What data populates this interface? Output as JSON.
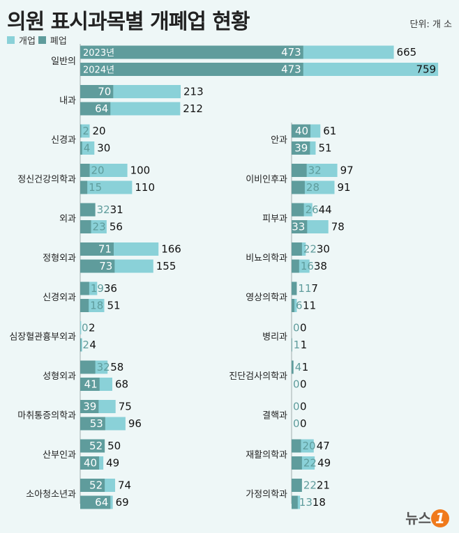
{
  "title": "의원 표시과목별 개폐업 현황",
  "unit": "단위: 개 소",
  "legend": {
    "open": "개업",
    "close": "폐업"
  },
  "colors": {
    "open": "#8ad1d8",
    "close": "#5f9c9c",
    "background": "#eef7f7"
  },
  "logo": "뉴스1",
  "chart_data": {
    "type": "bar",
    "orientation": "horizontal",
    "series_names": [
      "개업",
      "폐업"
    ],
    "years": [
      "2023년",
      "2024년"
    ],
    "left": [
      {
        "category": "일반의",
        "open": [
          665,
          759
        ],
        "close": [
          473,
          473
        ]
      },
      {
        "category": "내과",
        "open": [
          213,
          212
        ],
        "close": [
          70,
          64
        ]
      },
      {
        "category": "신경과",
        "open": [
          20,
          30
        ],
        "close": [
          2,
          4
        ]
      },
      {
        "category": "정신건강의학과",
        "open": [
          100,
          110
        ],
        "close": [
          20,
          15
        ]
      },
      {
        "category": "외과",
        "open": [
          31,
          56
        ],
        "close": [
          32,
          23
        ]
      },
      {
        "category": "정형외과",
        "open": [
          166,
          155
        ],
        "close": [
          71,
          73
        ]
      },
      {
        "category": "신경외과",
        "open": [
          36,
          51
        ],
        "close": [
          19,
          18
        ]
      },
      {
        "category": "심장혈관흉부외과",
        "open": [
          2,
          4
        ],
        "close": [
          0,
          2
        ]
      },
      {
        "category": "성형외과",
        "open": [
          58,
          68
        ],
        "close": [
          32,
          41
        ]
      },
      {
        "category": "마취통증의학과",
        "open": [
          75,
          96
        ],
        "close": [
          39,
          53
        ]
      },
      {
        "category": "산부인과",
        "open": [
          50,
          49
        ],
        "close": [
          52,
          40
        ]
      },
      {
        "category": "소아청소년과",
        "open": [
          74,
          69
        ],
        "close": [
          52,
          64
        ]
      }
    ],
    "right": [
      {
        "category": "안과",
        "open": [
          61,
          51
        ],
        "close": [
          40,
          39
        ]
      },
      {
        "category": "이비인후과",
        "open": [
          97,
          91
        ],
        "close": [
          32,
          28
        ]
      },
      {
        "category": "피부과",
        "open": [
          44,
          78
        ],
        "close": [
          26,
          33
        ]
      },
      {
        "category": "비뇨의학과",
        "open": [
          30,
          38
        ],
        "close": [
          22,
          16
        ]
      },
      {
        "category": "영상의학과",
        "open": [
          7,
          11
        ],
        "close": [
          11,
          6
        ]
      },
      {
        "category": "병리과",
        "open": [
          0,
          1
        ],
        "close": [
          0,
          1
        ]
      },
      {
        "category": "진단검사의학과",
        "open": [
          1,
          0
        ],
        "close": [
          4,
          0
        ]
      },
      {
        "category": "결핵과",
        "open": [
          0,
          0
        ],
        "close": [
          0,
          0
        ]
      },
      {
        "category": "재활의학과",
        "open": [
          47,
          49
        ],
        "close": [
          20,
          22
        ]
      },
      {
        "category": "가정의학과",
        "open": [
          21,
          18
        ],
        "close": [
          22,
          13
        ]
      }
    ]
  }
}
